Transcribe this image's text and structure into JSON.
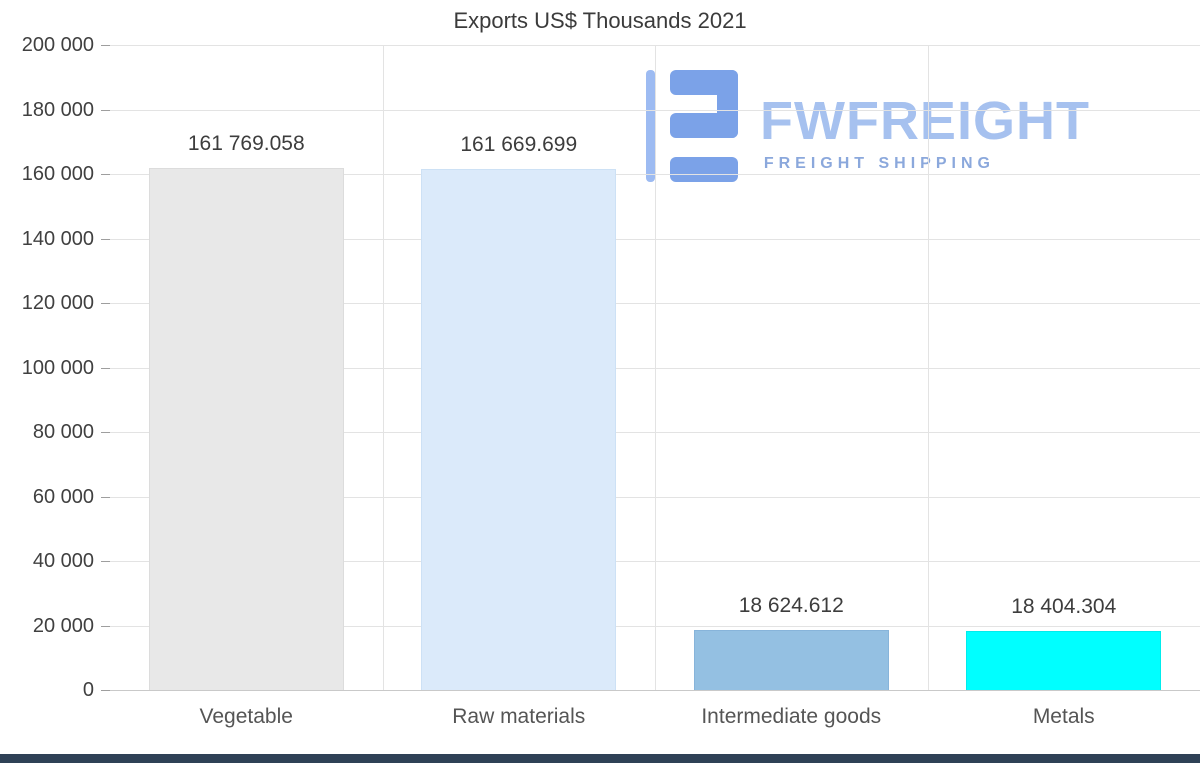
{
  "chart_data": {
    "type": "bar",
    "title": "Exports US$ Thousands 2021",
    "categories": [
      "Vegetable",
      "Raw materials",
      "Intermediate goods",
      "Metals"
    ],
    "values": [
      161769.058,
      161669.699,
      18624.612,
      18404.304
    ],
    "value_labels": [
      "161 769.058",
      "161 669.699",
      "18 624.612",
      "18 404.304"
    ],
    "bar_colors": [
      "#e8e8e8",
      "#dbeafa",
      "#94c0e2",
      "#00ffff"
    ],
    "bar_border_colors": [
      "#dcdcdc",
      "#cde1f5",
      "#87b4da",
      "#00ecec"
    ],
    "ylim": [
      0,
      200000
    ],
    "ytick_step": 20000,
    "ytick_labels": [
      "0",
      "20 000",
      "40 000",
      "60 000",
      "80 000",
      "100 000",
      "120 000",
      "140 000",
      "160 000",
      "180 000",
      "200 000"
    ],
    "xlabel": "",
    "ylabel": "",
    "grid": "horizontal gridlines and vertical category separators",
    "legend_position": "none"
  },
  "watermark": {
    "brand": "FWFREIGHT",
    "tagline": "FREIGHT SHIPPING",
    "brand_color": "#a6c1ef",
    "tagline_color": "#8ba8dc",
    "icon_color": "#7ba2e8",
    "icon_accent_color": "#9dbbf2"
  },
  "footer": {
    "bar_color": "#2f4156"
  }
}
